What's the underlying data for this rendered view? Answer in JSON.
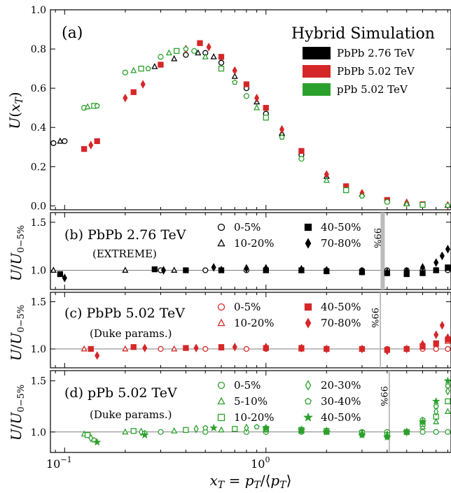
{
  "chart_data": [
    {
      "panel": "(a)",
      "type": "scatter",
      "title": "Hybrid Simulation",
      "xlabel": "x_T = p_T/⟨p_T⟩",
      "ylabel": "U(x_T)",
      "xscale": "log",
      "xlim": [
        0.085,
        8.3
      ],
      "ylim": [
        -0.02,
        1.0
      ],
      "xticks": [
        {
          "v": 0.1,
          "base": "10",
          "exp": "−1"
        },
        {
          "v": 1,
          "base": "10",
          "exp": "0"
        }
      ],
      "yticks": [
        "0.0",
        "0.2",
        "0.4",
        "0.6",
        "0.8",
        "1.0"
      ],
      "legend_placement": "top-right",
      "legend": [
        {
          "name": "PbPb 2.76 TeV",
          "color": "#000000"
        },
        {
          "name": "PbPb 5.02 TeV",
          "color": "#d62728"
        },
        {
          "name": "pPb 5.02 TeV",
          "color": "#2ca02c"
        }
      ],
      "series": [
        {
          "name": "PbPb 2.76 TeV",
          "color": "#000000",
          "x": [
            0.088,
            0.095,
            0.1,
            0.28,
            0.3,
            0.35,
            0.4,
            0.46,
            0.5,
            0.55,
            0.6,
            0.7,
            0.8,
            0.9,
            1.0,
            1.2,
            1.5,
            2.0,
            2.5,
            3.0,
            4.0,
            5.0,
            6.0,
            8.0
          ],
          "y": [
            0.32,
            0.33,
            0.33,
            0.71,
            0.72,
            0.75,
            0.77,
            0.78,
            0.78,
            0.76,
            0.73,
            0.66,
            0.6,
            0.53,
            0.47,
            0.37,
            0.26,
            0.15,
            0.09,
            0.06,
            0.03,
            0.015,
            0.008,
            0.003
          ]
        },
        {
          "name": "PbPb 5.02 TeV",
          "color": "#d62728",
          "x": [
            0.125,
            0.135,
            0.145,
            0.2,
            0.22,
            0.245,
            0.3,
            0.4,
            0.47,
            0.52,
            0.6,
            0.7,
            0.8,
            0.9,
            1.0,
            1.2,
            1.5,
            2.0,
            2.5,
            3.0,
            4.0,
            5.0,
            6.0,
            8.0
          ],
          "y": [
            0.29,
            0.31,
            0.33,
            0.55,
            0.58,
            0.62,
            0.72,
            0.8,
            0.83,
            0.81,
            0.76,
            0.69,
            0.62,
            0.55,
            0.5,
            0.39,
            0.28,
            0.16,
            0.1,
            0.065,
            0.03,
            0.016,
            0.008,
            0.003
          ]
        },
        {
          "name": "pPb 5.02 TeV",
          "color": "#2ca02c",
          "x": [
            0.125,
            0.13,
            0.14,
            0.145,
            0.2,
            0.22,
            0.24,
            0.26,
            0.3,
            0.33,
            0.36,
            0.4,
            0.44,
            0.5,
            0.6,
            0.7,
            0.8,
            0.9,
            1.0,
            1.2,
            1.5,
            2.0,
            2.5,
            3.0,
            4.0,
            5.0,
            6.0,
            8.0
          ],
          "y": [
            0.5,
            0.505,
            0.51,
            0.51,
            0.68,
            0.69,
            0.7,
            0.7,
            0.76,
            0.78,
            0.79,
            0.8,
            0.79,
            0.76,
            0.7,
            0.63,
            0.56,
            0.5,
            0.45,
            0.35,
            0.24,
            0.13,
            0.08,
            0.05,
            0.02,
            0.01,
            0.005,
            0.002
          ]
        }
      ]
    },
    {
      "panel": "(b)",
      "type": "scatter",
      "system_label": "PbPb 2.76 TeV",
      "sub_label": "(EXTREME)",
      "ylabel": "U/U_0−5%",
      "xscale": "log",
      "xlim": [
        0.085,
        8.3
      ],
      "ylim": [
        0.8,
        1.6
      ],
      "yticks": [
        "1.0",
        "1.5"
      ],
      "percentile_label": "99%",
      "percentile_x": 3.8,
      "color": "#000000",
      "legend": [
        "0-5%",
        "10-20%",
        "40-50%",
        "70-80%"
      ],
      "series": [
        {
          "name": "0-5%",
          "marker": "circle-open",
          "x": [
            0.3,
            0.5,
            0.8,
            1.0,
            1.5,
            2.0,
            3.0,
            4.0,
            5.0,
            6.0,
            7.0,
            8.0
          ],
          "y": [
            1.0,
            1.0,
            1.0,
            1.0,
            1.0,
            1.0,
            1.0,
            1.0,
            1.0,
            1.0,
            1.0,
            1.0
          ]
        },
        {
          "name": "10-20%",
          "marker": "triangle-open",
          "x": [
            0.088,
            0.2,
            0.35,
            0.6,
            1.0,
            1.5,
            2.0,
            3.0,
            4.0,
            5.0,
            6.0,
            7.0,
            8.0
          ],
          "y": [
            1.0,
            1.0,
            1.0,
            1.01,
            1.0,
            1.0,
            0.99,
            0.99,
            0.98,
            0.97,
            0.98,
            1.0,
            1.02
          ]
        },
        {
          "name": "40-50%",
          "marker": "square-filled",
          "x": [
            0.095,
            0.28,
            0.4,
            0.6,
            1.0,
            1.5,
            2.0,
            3.0,
            4.0,
            5.0,
            6.0,
            7.0,
            8.0
          ],
          "y": [
            0.96,
            1.01,
            1.0,
            1.0,
            1.0,
            1.0,
            0.99,
            0.98,
            0.97,
            0.96,
            0.97,
            1.0,
            1.03
          ]
        },
        {
          "name": "70-80%",
          "marker": "diamond-filled",
          "x": [
            0.1,
            0.31,
            0.55,
            0.8,
            1.0,
            1.5,
            2.0,
            3.0,
            4.0,
            5.0,
            6.0,
            7.0,
            7.5,
            8.0
          ],
          "y": [
            0.92,
            1.0,
            1.03,
            1.02,
            1.02,
            1.01,
            1.0,
            0.99,
            0.98,
            0.99,
            1.03,
            1.08,
            1.15,
            1.22
          ]
        }
      ]
    },
    {
      "panel": "(c)",
      "type": "scatter",
      "system_label": "PbPb 5.02 TeV",
      "sub_label": "(Duke params.)",
      "ylabel": "U/U_0−5%",
      "xscale": "log",
      "xlim": [
        0.085,
        8.3
      ],
      "ylim": [
        0.8,
        1.6
      ],
      "yticks": [
        "1.0",
        "1.5"
      ],
      "percentile_label": "99%",
      "percentile_x": 3.7,
      "color": "#d62728",
      "legend": [
        "0-5%",
        "10-20%",
        "40-50%",
        "70-80%"
      ],
      "series": [
        {
          "name": "0-5%",
          "marker": "circle-open",
          "x": [
            0.3,
            0.5,
            0.8,
            1.0,
            1.5,
            2.0,
            3.0,
            4.0,
            5.0,
            6.0,
            7.0,
            8.0
          ],
          "y": [
            1.0,
            1.0,
            1.0,
            1.0,
            1.0,
            1.0,
            1.0,
            1.0,
            1.0,
            1.0,
            1.0,
            1.0
          ]
        },
        {
          "name": "10-20%",
          "marker": "triangle-open",
          "x": [
            0.125,
            0.2,
            0.35,
            0.6,
            1.0,
            1.5,
            2.0,
            3.0,
            4.0,
            5.0,
            6.0,
            7.0,
            8.0
          ],
          "y": [
            1.0,
            1.0,
            1.0,
            1.01,
            1.01,
            1.0,
            1.0,
            1.0,
            0.99,
            1.0,
            1.02,
            1.05,
            1.08
          ]
        },
        {
          "name": "40-50%",
          "marker": "square-filled",
          "x": [
            0.135,
            0.22,
            0.4,
            0.6,
            1.0,
            1.5,
            2.0,
            3.0,
            4.0,
            5.0,
            6.0,
            7.0,
            8.0
          ],
          "y": [
            1.0,
            1.02,
            1.01,
            1.02,
            1.01,
            1.01,
            1.0,
            1.0,
            0.99,
            1.0,
            1.03,
            1.06,
            1.1
          ]
        },
        {
          "name": "70-80%",
          "marker": "diamond-filled",
          "x": [
            0.145,
            0.25,
            0.45,
            0.7,
            1.0,
            1.5,
            2.0,
            3.0,
            4.0,
            5.0,
            6.0,
            7.0,
            7.5,
            8.0
          ],
          "y": [
            0.93,
            1.01,
            1.01,
            1.02,
            1.02,
            1.01,
            1.0,
            1.0,
            0.98,
            1.0,
            1.05,
            1.15,
            1.25,
            1.12
          ]
        }
      ]
    },
    {
      "panel": "(d)",
      "type": "scatter",
      "system_label": "pPb 5.02 TeV",
      "sub_label": "(Duke params.)",
      "ylabel": "U/U_0−5%",
      "xlabel": "x_T = p_T/⟨p_T⟩",
      "xscale": "log",
      "xlim": [
        0.085,
        8.3
      ],
      "ylim": [
        0.8,
        1.6
      ],
      "yticks": [
        "1.0",
        "1.5"
      ],
      "percentile_label": "99%",
      "percentile_x": 4.1,
      "color": "#2ca02c",
      "legend": [
        "0-5%",
        "5-10%",
        "10-20%",
        "20-30%",
        "30-40%",
        "40-50%"
      ],
      "series": [
        {
          "name": "0-5%",
          "marker": "circle-open",
          "x": [
            0.3,
            0.5,
            0.8,
            1.0,
            1.5,
            2.0,
            3.0,
            4.0,
            5.0,
            6.0,
            7.0,
            8.0
          ],
          "y": [
            1.0,
            1.0,
            1.0,
            1.0,
            1.0,
            1.0,
            1.0,
            1.0,
            1.0,
            1.0,
            1.0,
            1.0
          ]
        },
        {
          "name": "5-10%",
          "marker": "triangle-open",
          "x": [
            0.125,
            0.2,
            0.35,
            0.6,
            1.0,
            1.5,
            2.0,
            3.0,
            4.0,
            5.0,
            6.0,
            7.0,
            8.0
          ],
          "y": [
            0.98,
            1.0,
            1.01,
            1.02,
            1.02,
            1.01,
            1.0,
            0.99,
            0.98,
            1.0,
            1.05,
            1.1,
            1.2
          ]
        },
        {
          "name": "10-20%",
          "marker": "square-open",
          "x": [
            0.13,
            0.22,
            0.4,
            0.7,
            1.0,
            1.5,
            2.0,
            3.0,
            4.0,
            5.0,
            6.0,
            7.0,
            8.0
          ],
          "y": [
            0.97,
            1.01,
            1.02,
            1.03,
            1.03,
            1.02,
            1.01,
            0.99,
            0.97,
            1.0,
            1.08,
            1.15,
            1.3
          ]
        },
        {
          "name": "20-30%",
          "marker": "diamond-open",
          "x": [
            0.135,
            0.24,
            0.45,
            0.8,
            1.0,
            1.5,
            2.0,
            3.0,
            4.0,
            5.0,
            6.0,
            7.0,
            8.0
          ],
          "y": [
            0.94,
            1.0,
            1.03,
            1.04,
            1.03,
            1.02,
            1.01,
            0.98,
            0.96,
            1.0,
            1.1,
            1.2,
            1.4
          ]
        },
        {
          "name": "30-40%",
          "marker": "pentagon-open",
          "x": [
            0.14,
            0.25,
            0.5,
            0.9,
            1.0,
            1.5,
            2.0,
            3.0,
            4.0,
            5.0,
            6.0,
            7.0,
            8.0
          ],
          "y": [
            0.92,
            0.99,
            1.04,
            1.05,
            1.04,
            1.02,
            1.0,
            0.97,
            0.95,
            1.0,
            1.12,
            1.25,
            1.45
          ]
        },
        {
          "name": "40-50%",
          "marker": "star-filled",
          "x": [
            0.145,
            0.25,
            0.55,
            1.0,
            1.5,
            2.0,
            3.0,
            4.0,
            5.0,
            6.0,
            7.0,
            8.0
          ],
          "y": [
            0.9,
            0.97,
            1.04,
            1.04,
            1.02,
            1.0,
            0.97,
            0.95,
            1.0,
            1.1,
            1.3,
            1.5
          ]
        }
      ]
    }
  ]
}
